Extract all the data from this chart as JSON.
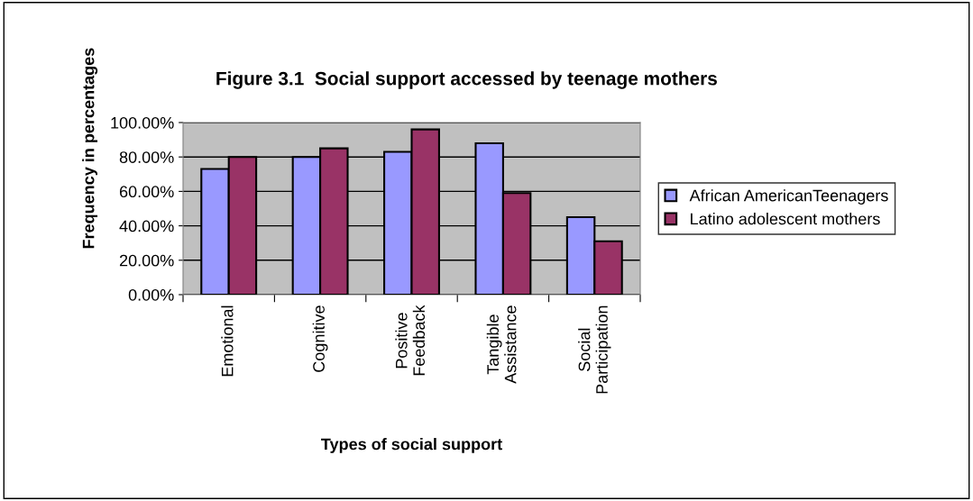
{
  "chart_data": {
    "type": "bar",
    "title": "Figure 3.1  Social support accessed by teenage mothers",
    "xlabel": "Types of social support",
    "ylabel": "Frequency in percentages",
    "categories": [
      "Emotional",
      "Cognitive",
      "Positive\nFeedback",
      "Tangible\nAssistance",
      "Social\nParticipation"
    ],
    "series": [
      {
        "name": "African AmericanTeenagers",
        "color": "#9999ff",
        "values": [
          73,
          80,
          83,
          88,
          45
        ]
      },
      {
        "name": "Latino adolescent mothers",
        "color": "#993366",
        "values": [
          80,
          85,
          96,
          59,
          31
        ]
      }
    ],
    "ylim": [
      0,
      100
    ],
    "yticks": [
      {
        "value": 0,
        "label": "0.00%"
      },
      {
        "value": 20,
        "label": "20.00%"
      },
      {
        "value": 40,
        "label": "40.00%"
      },
      {
        "value": 60,
        "label": "60.00%"
      },
      {
        "value": 80,
        "label": "80.00%"
      },
      {
        "value": 100,
        "label": "100.00%"
      }
    ],
    "grid": "y",
    "legend": "right"
  }
}
